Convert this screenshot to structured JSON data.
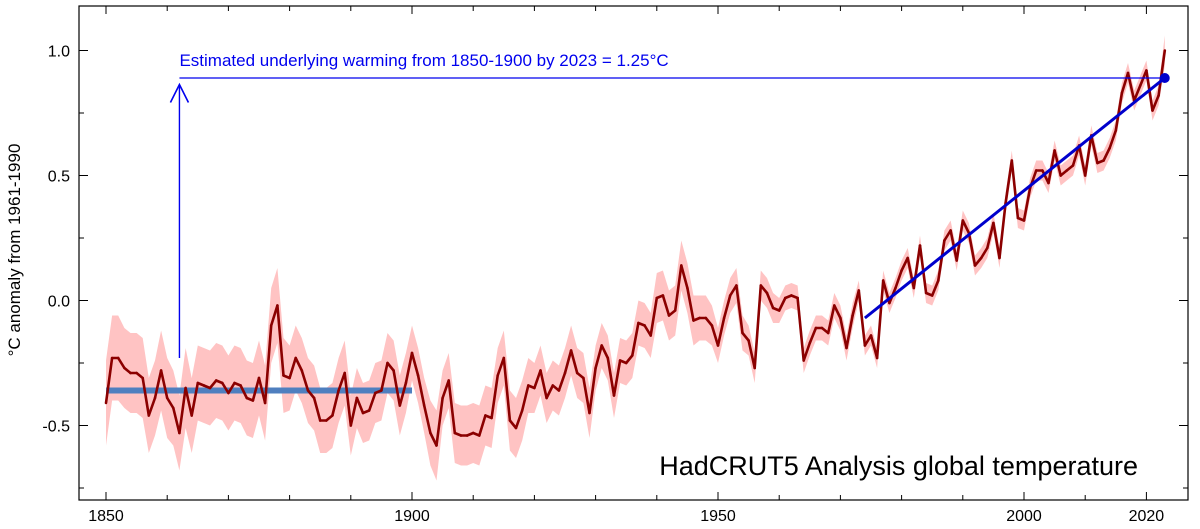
{
  "chart_data": {
    "type": "line",
    "title": "HadCRUT5 Analysis global temperature",
    "ylabel": "°C anomaly from 1961-1990",
    "xlabel": "",
    "xlim": [
      1850,
      2023
    ],
    "ylim": [
      -0.8,
      1.15
    ],
    "x_ticks": [
      1850,
      1900,
      1950,
      2000,
      2020
    ],
    "y_ticks": [
      -0.5,
      0.0,
      0.5,
      1.0
    ],
    "y_tick_labels": [
      "-0.5",
      "0.0",
      "0.5",
      "1.0"
    ],
    "grid": false,
    "annotation": {
      "text": "Estimated underlying warming from 1850-1900 by 2023 = 1.25°C",
      "arrow_x": 1862,
      "arrow_from": -0.23,
      "arrow_to": 0.86,
      "level": 0.89,
      "color": "#0000ee"
    },
    "baseline": {
      "x_start": 1850,
      "x_end": 1900,
      "value": -0.36,
      "color": "#4f7fbf"
    },
    "trend": {
      "x_start": 1974,
      "x_end": 2023,
      "y_start": -0.07,
      "y_end": 0.89,
      "endpoint_marker": true,
      "color": "#0000cc"
    },
    "colors": {
      "series": "#8b0000",
      "uncertainty": "#ffc3c3"
    },
    "series": [
      {
        "name": "",
        "x": [
          1850,
          1851,
          1852,
          1853,
          1854,
          1855,
          1856,
          1857,
          1858,
          1859,
          1860,
          1861,
          1862,
          1863,
          1864,
          1865,
          1866,
          1867,
          1868,
          1869,
          1870,
          1871,
          1872,
          1873,
          1874,
          1875,
          1876,
          1877,
          1878,
          1879,
          1880,
          1881,
          1882,
          1883,
          1884,
          1885,
          1886,
          1887,
          1888,
          1889,
          1890,
          1891,
          1892,
          1893,
          1894,
          1895,
          1896,
          1897,
          1898,
          1899,
          1900,
          1901,
          1902,
          1903,
          1904,
          1905,
          1906,
          1907,
          1908,
          1909,
          1910,
          1911,
          1912,
          1913,
          1914,
          1915,
          1916,
          1917,
          1918,
          1919,
          1920,
          1921,
          1922,
          1923,
          1924,
          1925,
          1926,
          1927,
          1928,
          1929,
          1930,
          1931,
          1932,
          1933,
          1934,
          1935,
          1936,
          1937,
          1938,
          1939,
          1940,
          1941,
          1942,
          1943,
          1944,
          1945,
          1946,
          1947,
          1948,
          1949,
          1950,
          1951,
          1952,
          1953,
          1954,
          1955,
          1956,
          1957,
          1958,
          1959,
          1960,
          1961,
          1962,
          1963,
          1964,
          1965,
          1966,
          1967,
          1968,
          1969,
          1970,
          1971,
          1972,
          1973,
          1974,
          1975,
          1976,
          1977,
          1978,
          1979,
          1980,
          1981,
          1982,
          1983,
          1984,
          1985,
          1986,
          1987,
          1988,
          1989,
          1990,
          1991,
          1992,
          1993,
          1994,
          1995,
          1996,
          1997,
          1998,
          1999,
          2000,
          2001,
          2002,
          2003,
          2004,
          2005,
          2006,
          2007,
          2008,
          2009,
          2010,
          2011,
          2012,
          2013,
          2014,
          2015,
          2016,
          2017,
          2018,
          2019,
          2020,
          2021,
          2022,
          2023
        ],
        "y": [
          -0.41,
          -0.23,
          -0.23,
          -0.27,
          -0.29,
          -0.29,
          -0.31,
          -0.46,
          -0.39,
          -0.28,
          -0.39,
          -0.43,
          -0.53,
          -0.35,
          -0.46,
          -0.33,
          -0.34,
          -0.35,
          -0.32,
          -0.33,
          -0.37,
          -0.33,
          -0.34,
          -0.39,
          -0.4,
          -0.31,
          -0.41,
          -0.1,
          -0.02,
          -0.3,
          -0.31,
          -0.23,
          -0.28,
          -0.36,
          -0.39,
          -0.48,
          -0.48,
          -0.46,
          -0.36,
          -0.29,
          -0.5,
          -0.39,
          -0.45,
          -0.44,
          -0.37,
          -0.36,
          -0.25,
          -0.28,
          -0.42,
          -0.33,
          -0.21,
          -0.3,
          -0.42,
          -0.53,
          -0.58,
          -0.39,
          -0.32,
          -0.53,
          -0.54,
          -0.54,
          -0.53,
          -0.54,
          -0.46,
          -0.47,
          -0.3,
          -0.23,
          -0.48,
          -0.51,
          -0.44,
          -0.34,
          -0.35,
          -0.28,
          -0.39,
          -0.34,
          -0.36,
          -0.29,
          -0.2,
          -0.29,
          -0.31,
          -0.45,
          -0.27,
          -0.18,
          -0.23,
          -0.38,
          -0.24,
          -0.25,
          -0.22,
          -0.09,
          -0.1,
          -0.14,
          0.01,
          0.02,
          -0.06,
          -0.04,
          0.14,
          0.05,
          -0.08,
          -0.07,
          -0.07,
          -0.1,
          -0.18,
          -0.07,
          0.02,
          0.06,
          -0.13,
          -0.16,
          -0.27,
          0.06,
          0.03,
          -0.03,
          -0.04,
          0.01,
          0.02,
          0.01,
          -0.24,
          -0.17,
          -0.11,
          -0.11,
          -0.13,
          -0.02,
          -0.07,
          -0.19,
          -0.06,
          0.04,
          -0.18,
          -0.14,
          -0.23,
          0.08,
          -0.01,
          0.05,
          0.12,
          0.17,
          0.05,
          0.22,
          0.03,
          0.02,
          0.08,
          0.24,
          0.28,
          0.16,
          0.32,
          0.27,
          0.14,
          0.17,
          0.21,
          0.31,
          0.17,
          0.39,
          0.56,
          0.33,
          0.32,
          0.45,
          0.52,
          0.52,
          0.47,
          0.6,
          0.5,
          0.52,
          0.54,
          0.62,
          0.5,
          0.66,
          0.55,
          0.56,
          0.61,
          0.68,
          0.83,
          0.91,
          0.8,
          0.86,
          0.92,
          0.76,
          0.82,
          1.0
        ],
        "unc_lo": [
          -0.58,
          -0.4,
          -0.4,
          -0.43,
          -0.45,
          -0.45,
          -0.47,
          -0.61,
          -0.54,
          -0.44,
          -0.55,
          -0.58,
          -0.68,
          -0.51,
          -0.61,
          -0.48,
          -0.49,
          -0.5,
          -0.47,
          -0.48,
          -0.52,
          -0.48,
          -0.49,
          -0.54,
          -0.55,
          -0.46,
          -0.56,
          -0.25,
          -0.17,
          -0.45,
          -0.44,
          -0.36,
          -0.41,
          -0.49,
          -0.52,
          -0.61,
          -0.61,
          -0.59,
          -0.49,
          -0.42,
          -0.62,
          -0.51,
          -0.57,
          -0.56,
          -0.49,
          -0.48,
          -0.37,
          -0.4,
          -0.54,
          -0.45,
          -0.32,
          -0.41,
          -0.53,
          -0.66,
          -0.72,
          -0.5,
          -0.43,
          -0.65,
          -0.66,
          -0.66,
          -0.65,
          -0.66,
          -0.58,
          -0.59,
          -0.41,
          -0.34,
          -0.6,
          -0.63,
          -0.56,
          -0.45,
          -0.45,
          -0.38,
          -0.49,
          -0.44,
          -0.46,
          -0.39,
          -0.3,
          -0.39,
          -0.41,
          -0.55,
          -0.36,
          -0.27,
          -0.32,
          -0.47,
          -0.33,
          -0.34,
          -0.31,
          -0.18,
          -0.19,
          -0.23,
          -0.09,
          -0.08,
          -0.16,
          -0.14,
          0.04,
          -0.05,
          -0.18,
          -0.16,
          -0.16,
          -0.18,
          -0.25,
          -0.14,
          -0.05,
          -0.01,
          -0.2,
          -0.22,
          -0.33,
          0.0,
          -0.03,
          -0.09,
          -0.09,
          -0.04,
          -0.03,
          -0.04,
          -0.29,
          -0.22,
          -0.16,
          -0.16,
          -0.18,
          -0.07,
          -0.12,
          -0.24,
          -0.11,
          0.0,
          -0.22,
          -0.18,
          -0.27,
          0.04,
          -0.05,
          0.01,
          0.08,
          0.13,
          0.01,
          0.18,
          -0.01,
          -0.02,
          0.04,
          0.2,
          0.24,
          0.12,
          0.28,
          0.23,
          0.1,
          0.13,
          0.17,
          0.27,
          0.13,
          0.35,
          0.52,
          0.29,
          0.28,
          0.41,
          0.48,
          0.48,
          0.43,
          0.56,
          0.46,
          0.48,
          0.5,
          0.58,
          0.46,
          0.62,
          0.51,
          0.52,
          0.57,
          0.64,
          0.79,
          0.87,
          0.76,
          0.82,
          0.88,
          0.72,
          0.78,
          0.94
        ],
        "unc_hi": [
          -0.24,
          -0.06,
          -0.06,
          -0.11,
          -0.13,
          -0.13,
          -0.15,
          -0.31,
          -0.24,
          -0.12,
          -0.23,
          -0.28,
          -0.38,
          -0.19,
          -0.31,
          -0.18,
          -0.19,
          -0.2,
          -0.17,
          -0.18,
          -0.22,
          -0.18,
          -0.19,
          -0.24,
          -0.25,
          -0.16,
          -0.26,
          0.05,
          0.13,
          -0.15,
          -0.18,
          -0.1,
          -0.15,
          -0.23,
          -0.26,
          -0.35,
          -0.35,
          -0.33,
          -0.23,
          -0.16,
          -0.38,
          -0.27,
          -0.33,
          -0.32,
          -0.25,
          -0.24,
          -0.13,
          -0.16,
          -0.3,
          -0.21,
          -0.1,
          -0.19,
          -0.31,
          -0.4,
          -0.44,
          -0.28,
          -0.21,
          -0.41,
          -0.42,
          -0.42,
          -0.41,
          -0.42,
          -0.34,
          -0.35,
          -0.19,
          -0.12,
          -0.36,
          -0.39,
          -0.32,
          -0.23,
          -0.25,
          -0.18,
          -0.29,
          -0.24,
          -0.26,
          -0.19,
          -0.1,
          -0.19,
          -0.21,
          -0.35,
          -0.18,
          -0.09,
          -0.14,
          -0.29,
          -0.15,
          -0.16,
          -0.13,
          0.0,
          -0.01,
          -0.05,
          0.11,
          0.12,
          0.04,
          0.06,
          0.24,
          0.15,
          0.02,
          0.02,
          0.02,
          -0.02,
          -0.11,
          0.0,
          0.09,
          0.13,
          -0.06,
          -0.1,
          -0.21,
          0.12,
          0.09,
          0.03,
          0.01,
          0.06,
          0.07,
          0.06,
          -0.19,
          -0.12,
          -0.06,
          -0.06,
          -0.08,
          0.03,
          -0.02,
          -0.14,
          -0.01,
          0.08,
          -0.14,
          -0.1,
          -0.19,
          0.12,
          0.03,
          0.09,
          0.16,
          0.21,
          0.09,
          0.26,
          0.07,
          0.06,
          0.12,
          0.28,
          0.32,
          0.2,
          0.36,
          0.31,
          0.18,
          0.21,
          0.25,
          0.35,
          0.21,
          0.43,
          0.6,
          0.37,
          0.36,
          0.49,
          0.56,
          0.56,
          0.51,
          0.64,
          0.54,
          0.56,
          0.58,
          0.66,
          0.54,
          0.7,
          0.59,
          0.6,
          0.65,
          0.72,
          0.87,
          0.95,
          0.84,
          0.9,
          0.96,
          0.8,
          0.86,
          1.06
        ]
      }
    ]
  }
}
